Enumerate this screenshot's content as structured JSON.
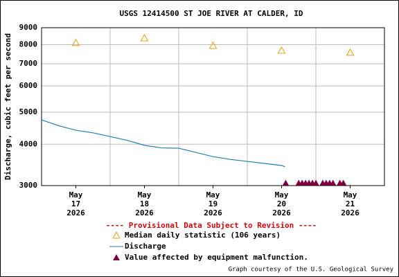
{
  "chart_data": {
    "type": "line",
    "title": "USGS 12414500 ST JOE RIVER AT CALDER, ID",
    "y_label": "Discharge, cubic feet per second",
    "log_y": true,
    "grid": true,
    "xlim": [
      16.5,
      21.5
    ],
    "ylim": [
      3000,
      9000
    ],
    "yticks": [
      3000,
      4000,
      5000,
      6000,
      7000,
      8000,
      9000
    ],
    "xticks": [
      {
        "value": 17,
        "label": [
          "May",
          "17",
          "2026"
        ]
      },
      {
        "value": 18,
        "label": [
          "May",
          "18",
          "2026"
        ]
      },
      {
        "value": 19,
        "label": [
          "May",
          "19",
          "2026"
        ]
      },
      {
        "value": 20,
        "label": [
          "May",
          "20",
          "2026"
        ]
      },
      {
        "value": 21,
        "label": [
          "May",
          "21",
          "2026"
        ]
      }
    ],
    "notice": "---- Provisional Data Subject to Revision ----",
    "series": [
      {
        "name": "Median daily statistic (106 years)",
        "color": "#e8a000",
        "marker": "open-triangle",
        "x": [
          17,
          18,
          19,
          20,
          21
        ],
        "values": [
          8100,
          8370,
          7940,
          7680,
          7570
        ]
      },
      {
        "name": "Discharge",
        "color": "#1a7fc0",
        "marker": "line",
        "x": [
          16.5,
          16.75,
          17.0,
          17.25,
          17.5,
          17.75,
          18.0,
          18.25,
          18.5,
          18.75,
          19.0,
          19.25,
          19.5,
          19.75,
          20.0,
          20.05
        ],
        "values": [
          4740,
          4550,
          4410,
          4330,
          4220,
          4110,
          3970,
          3900,
          3890,
          3780,
          3670,
          3600,
          3550,
          3500,
          3450,
          3420
        ]
      },
      {
        "name": "Value affected by equipment malfunction.",
        "color": "#800040",
        "marker": "filled-triangle",
        "x": [
          20.06,
          20.25,
          20.3,
          20.35,
          20.4,
          20.45,
          20.5,
          20.6,
          20.65,
          20.7,
          20.75,
          20.85,
          20.9
        ]
      }
    ],
    "credit": "Graph courtesy of the U.S. Geological Survey"
  }
}
